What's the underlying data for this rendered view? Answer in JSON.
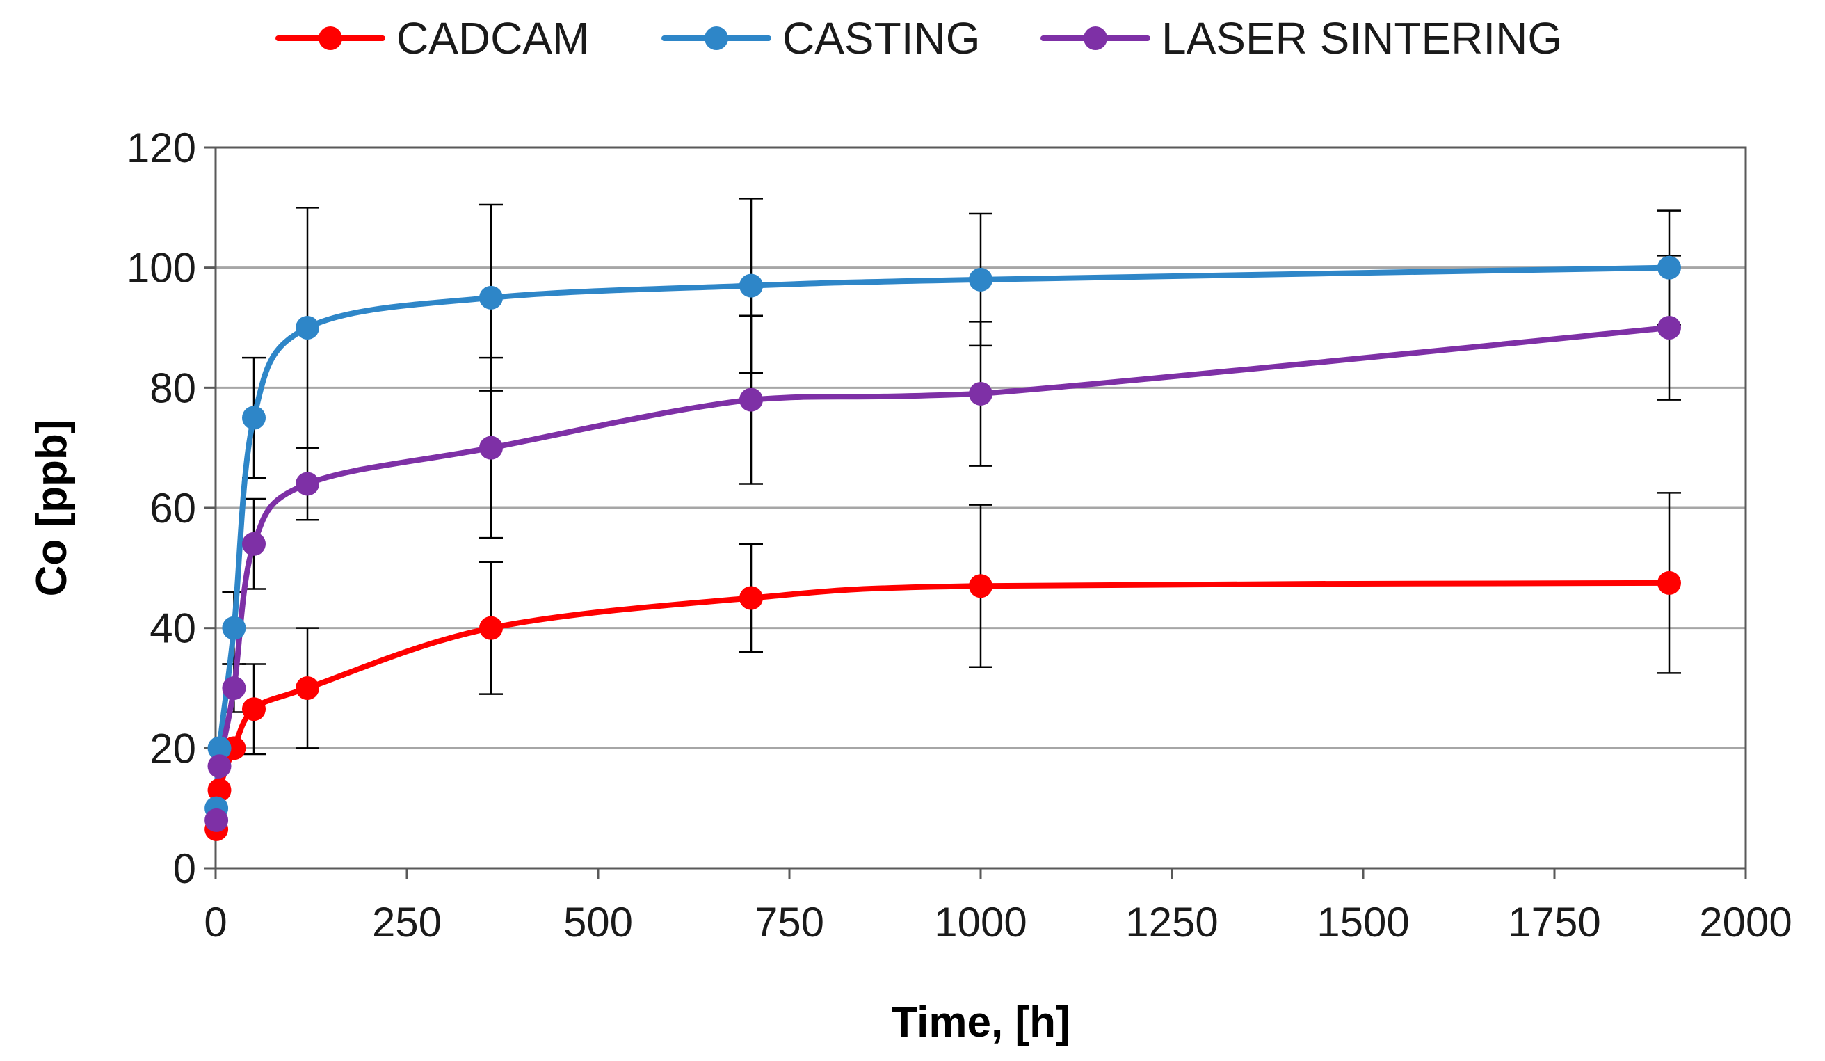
{
  "chart_data": {
    "type": "line",
    "title": "",
    "xlabel": "Time, [h]",
    "ylabel": "Co [ppb]",
    "xlim": [
      0,
      2000
    ],
    "ylim": [
      0,
      120
    ],
    "xticks": [
      0,
      250,
      500,
      750,
      1000,
      1250,
      1500,
      1750,
      2000
    ],
    "yticks": [
      0,
      20,
      40,
      60,
      80,
      100,
      120
    ],
    "grid": "horizontal",
    "legend_position": "top",
    "series": [
      {
        "name": "CADCAM",
        "color": "#ff0000",
        "points": [
          {
            "x": 1,
            "y": 6.5,
            "err": 0
          },
          {
            "x": 5,
            "y": 13,
            "err": 0
          },
          {
            "x": 24,
            "y": 20,
            "err": 0
          },
          {
            "x": 50,
            "y": 26.5,
            "err": 7.5
          },
          {
            "x": 120,
            "y": 30,
            "err": 10
          },
          {
            "x": 360,
            "y": 40,
            "err": 11
          },
          {
            "x": 700,
            "y": 45,
            "err": 9
          },
          {
            "x": 1000,
            "y": 47,
            "err": 13.5
          },
          {
            "x": 1900,
            "y": 47.5,
            "err": 15
          }
        ]
      },
      {
        "name": "CASTING",
        "color": "#2e86c8",
        "points": [
          {
            "x": 1,
            "y": 10,
            "err": 0
          },
          {
            "x": 5,
            "y": 20,
            "err": 0
          },
          {
            "x": 24,
            "y": 40,
            "err": 6
          },
          {
            "x": 50,
            "y": 75,
            "err": 10
          },
          {
            "x": 120,
            "y": 90,
            "err": 20
          },
          {
            "x": 360,
            "y": 95,
            "err": 15.5
          },
          {
            "x": 700,
            "y": 97,
            "err": 14.5
          },
          {
            "x": 1000,
            "y": 98,
            "err": 11
          },
          {
            "x": 1900,
            "y": 100,
            "err": 9.5
          }
        ]
      },
      {
        "name": "LASER SINTERING",
        "color": "#7e30a6",
        "points": [
          {
            "x": 1,
            "y": 8,
            "err": 0
          },
          {
            "x": 5,
            "y": 17,
            "err": 0
          },
          {
            "x": 24,
            "y": 30,
            "err": 4
          },
          {
            "x": 50,
            "y": 54,
            "err": 7.5
          },
          {
            "x": 120,
            "y": 64,
            "err": 6
          },
          {
            "x": 360,
            "y": 70,
            "err": 15
          },
          {
            "x": 700,
            "y": 78,
            "err": 14
          },
          {
            "x": 1000,
            "y": 79,
            "err": 12
          },
          {
            "x": 1900,
            "y": 90,
            "err": 12
          }
        ]
      }
    ]
  }
}
